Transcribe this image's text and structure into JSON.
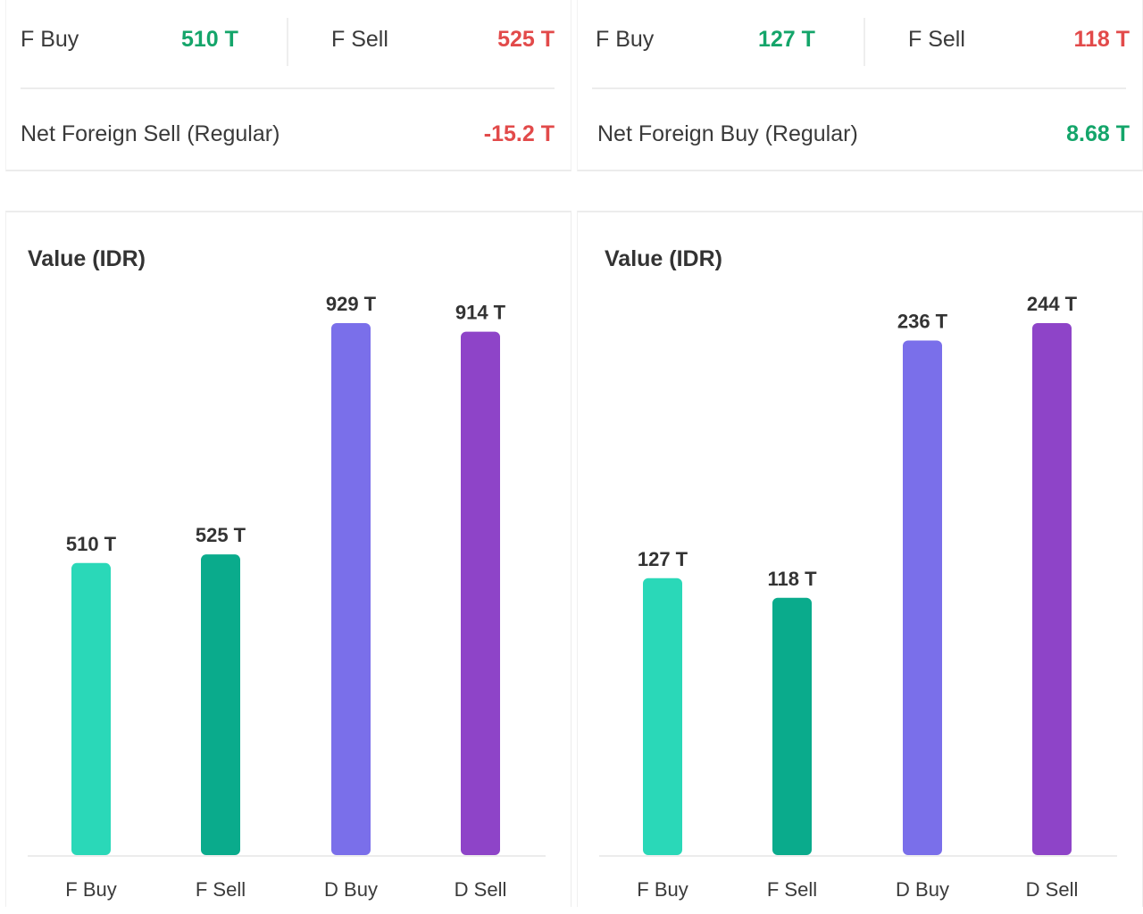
{
  "panels": [
    {
      "summary": {
        "f_buy_label": "F Buy",
        "f_buy_value": "510 T",
        "f_sell_label": "F Sell",
        "f_sell_value": "525 T",
        "net_label": "Net Foreign Sell (Regular)",
        "net_value": "-15.2 T",
        "net_color": "red"
      },
      "chart_title": "Value (IDR)"
    },
    {
      "summary": {
        "f_buy_label": "F Buy",
        "f_buy_value": "127 T",
        "f_sell_label": "F Sell",
        "f_sell_value": "118 T",
        "net_label": "Net Foreign Buy (Regular)",
        "net_value": "8.68 T",
        "net_color": "green"
      },
      "chart_title": "Value (IDR)"
    }
  ],
  "colors": {
    "green_text": "#14a56a",
    "red_text": "#e24a4a",
    "f_buy_bar": "#2ad8b8",
    "f_sell_bar": "#0aab8c",
    "d_buy_bar": "#7a6fea",
    "d_sell_bar": "#8e44c8"
  },
  "chart_data": [
    {
      "type": "bar",
      "title": "Value (IDR)",
      "categories": [
        "F Buy",
        "F Sell",
        "D Buy",
        "D Sell"
      ],
      "values": [
        510,
        525,
        929,
        914
      ],
      "data_labels": [
        "510 T",
        "525 T",
        "929 T",
        "914 T"
      ],
      "ylim": [
        0,
        929
      ],
      "grid": false,
      "legend": "none"
    },
    {
      "type": "bar",
      "title": "Value (IDR)",
      "categories": [
        "F Buy",
        "F Sell",
        "D Buy",
        "D Sell"
      ],
      "values": [
        127,
        118,
        236,
        244
      ],
      "data_labels": [
        "127 T",
        "118 T",
        "236 T",
        "244 T"
      ],
      "ylim": [
        0,
        244
      ],
      "grid": false,
      "legend": "none"
    }
  ]
}
